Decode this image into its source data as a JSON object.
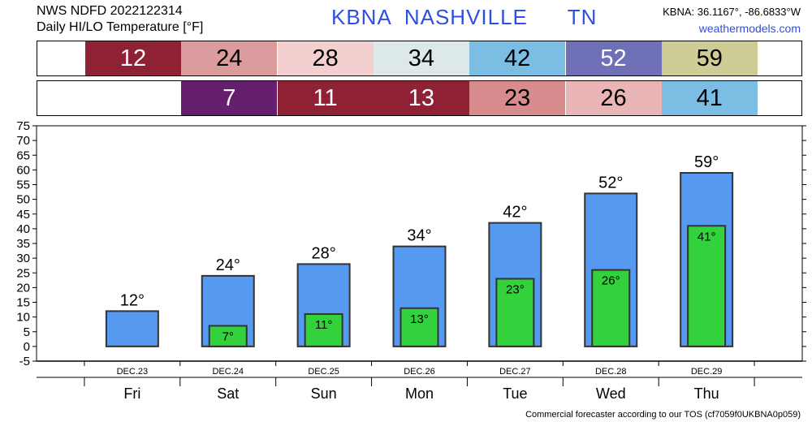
{
  "header": {
    "line1": "NWS NDFD 2022122314",
    "line2": "Daily HI/LO Temperature [°F]",
    "station_id": "KBNA",
    "city": "NASHVILLE",
    "state": "TN",
    "coords": "KBNA: 36.1167°, -86.6833°W",
    "site": "weathermodels.com"
  },
  "hi_strip": [
    {
      "value": "12",
      "color": "#8e2234",
      "text_color": "#ffffff"
    },
    {
      "value": "24",
      "color": "#dc9b9c",
      "text_color": "#000000"
    },
    {
      "value": "28",
      "color": "#f3cfcf",
      "text_color": "#000000"
    },
    {
      "value": "34",
      "color": "#dde8e8",
      "text_color": "#000000"
    },
    {
      "value": "42",
      "color": "#7cbde3",
      "text_color": "#000000"
    },
    {
      "value": "52",
      "color": "#7070b6",
      "text_color": "#ffffff"
    },
    {
      "value": "59",
      "color": "#cdcd95",
      "text_color": "#000000"
    }
  ],
  "lo_strip": [
    {
      "value": "7",
      "color": "#661f6e",
      "text_color": "#ffffff"
    },
    {
      "value": "11",
      "color": "#8e2234",
      "text_color": "#ffffff"
    },
    {
      "value": "13",
      "color": "#8e2234",
      "text_color": "#ffffff"
    },
    {
      "value": "23",
      "color": "#d88b8d",
      "text_color": "#000000"
    },
    {
      "value": "26",
      "color": "#e9b5b6",
      "text_color": "#000000"
    },
    {
      "value": "41",
      "color": "#7cbde3",
      "text_color": "#000000"
    }
  ],
  "chart_data": {
    "type": "bar",
    "categories": [
      "DEC.23",
      "DEC.24",
      "DEC.25",
      "DEC.26",
      "DEC.27",
      "DEC.28",
      "DEC.29"
    ],
    "day_labels": [
      "Fri",
      "Sat",
      "Sun",
      "Mon",
      "Tue",
      "Wed",
      "Thu"
    ],
    "series": [
      {
        "name": "",
        "values": [
          12,
          24,
          28,
          34,
          42,
          52,
          59
        ],
        "color": "#5599f0"
      },
      {
        "name": "",
        "values": [
          null,
          7,
          11,
          13,
          23,
          26,
          41
        ],
        "color": "#33d13c"
      }
    ],
    "ylim": [
      -5,
      75
    ],
    "yticks": [
      -5,
      0,
      5,
      10,
      15,
      20,
      25,
      30,
      35,
      40,
      45,
      50,
      55,
      60,
      65,
      70,
      75
    ],
    "grid": false,
    "degree_symbol": "°"
  },
  "footer": "Commercial forecaster according to our TOS (cf7059f0UKBNA0p059)"
}
